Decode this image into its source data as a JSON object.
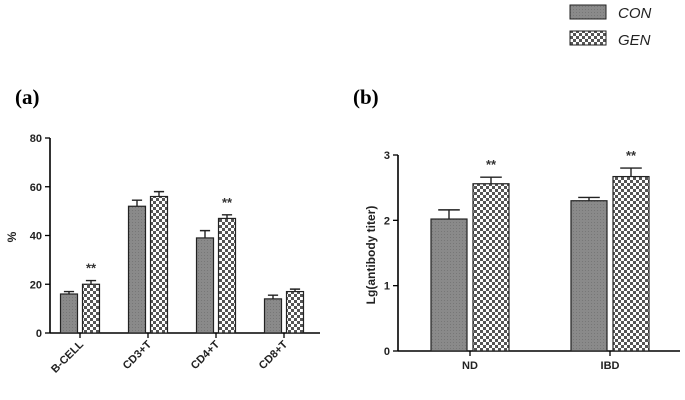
{
  "legend": [
    {
      "label": "CON",
      "pattern": "solid-gray"
    },
    {
      "label": "GEN",
      "pattern": "checker"
    }
  ],
  "colors": {
    "con_fill": "#8a8a8a",
    "checker_dark": "#555555",
    "checker_light": "#ffffff",
    "axis": "#000000"
  },
  "chart_data": [
    {
      "panel": "(a)",
      "type": "bar",
      "ylabel": "%",
      "xlabel": "",
      "ylim": [
        0,
        80
      ],
      "yticks": [
        0,
        20,
        40,
        60,
        80
      ],
      "categories": [
        "B-CELL",
        "CD3+T",
        "CD4+T",
        "CD8+T"
      ],
      "series": [
        {
          "name": "CON",
          "values": [
            16,
            52,
            39,
            14
          ],
          "errors": [
            1,
            2.5,
            3,
            1.5
          ]
        },
        {
          "name": "GEN",
          "values": [
            20,
            56,
            47,
            17
          ],
          "errors": [
            1.5,
            2,
            1.5,
            1
          ]
        }
      ],
      "significance": [
        "**",
        "",
        "**",
        ""
      ],
      "grid": false
    },
    {
      "panel": "(b)",
      "type": "bar",
      "ylabel": "Lg(antibody titer)",
      "xlabel": "",
      "ylim": [
        0,
        3
      ],
      "yticks": [
        0,
        1,
        2,
        3
      ],
      "categories": [
        "ND",
        "IBD"
      ],
      "series": [
        {
          "name": "CON",
          "values": [
            2.02,
            2.3
          ],
          "errors": [
            0.14,
            0.05
          ]
        },
        {
          "name": "GEN",
          "values": [
            2.56,
            2.67
          ],
          "errors": [
            0.1,
            0.13
          ]
        }
      ],
      "significance": [
        "**",
        "**"
      ],
      "grid": false
    }
  ]
}
